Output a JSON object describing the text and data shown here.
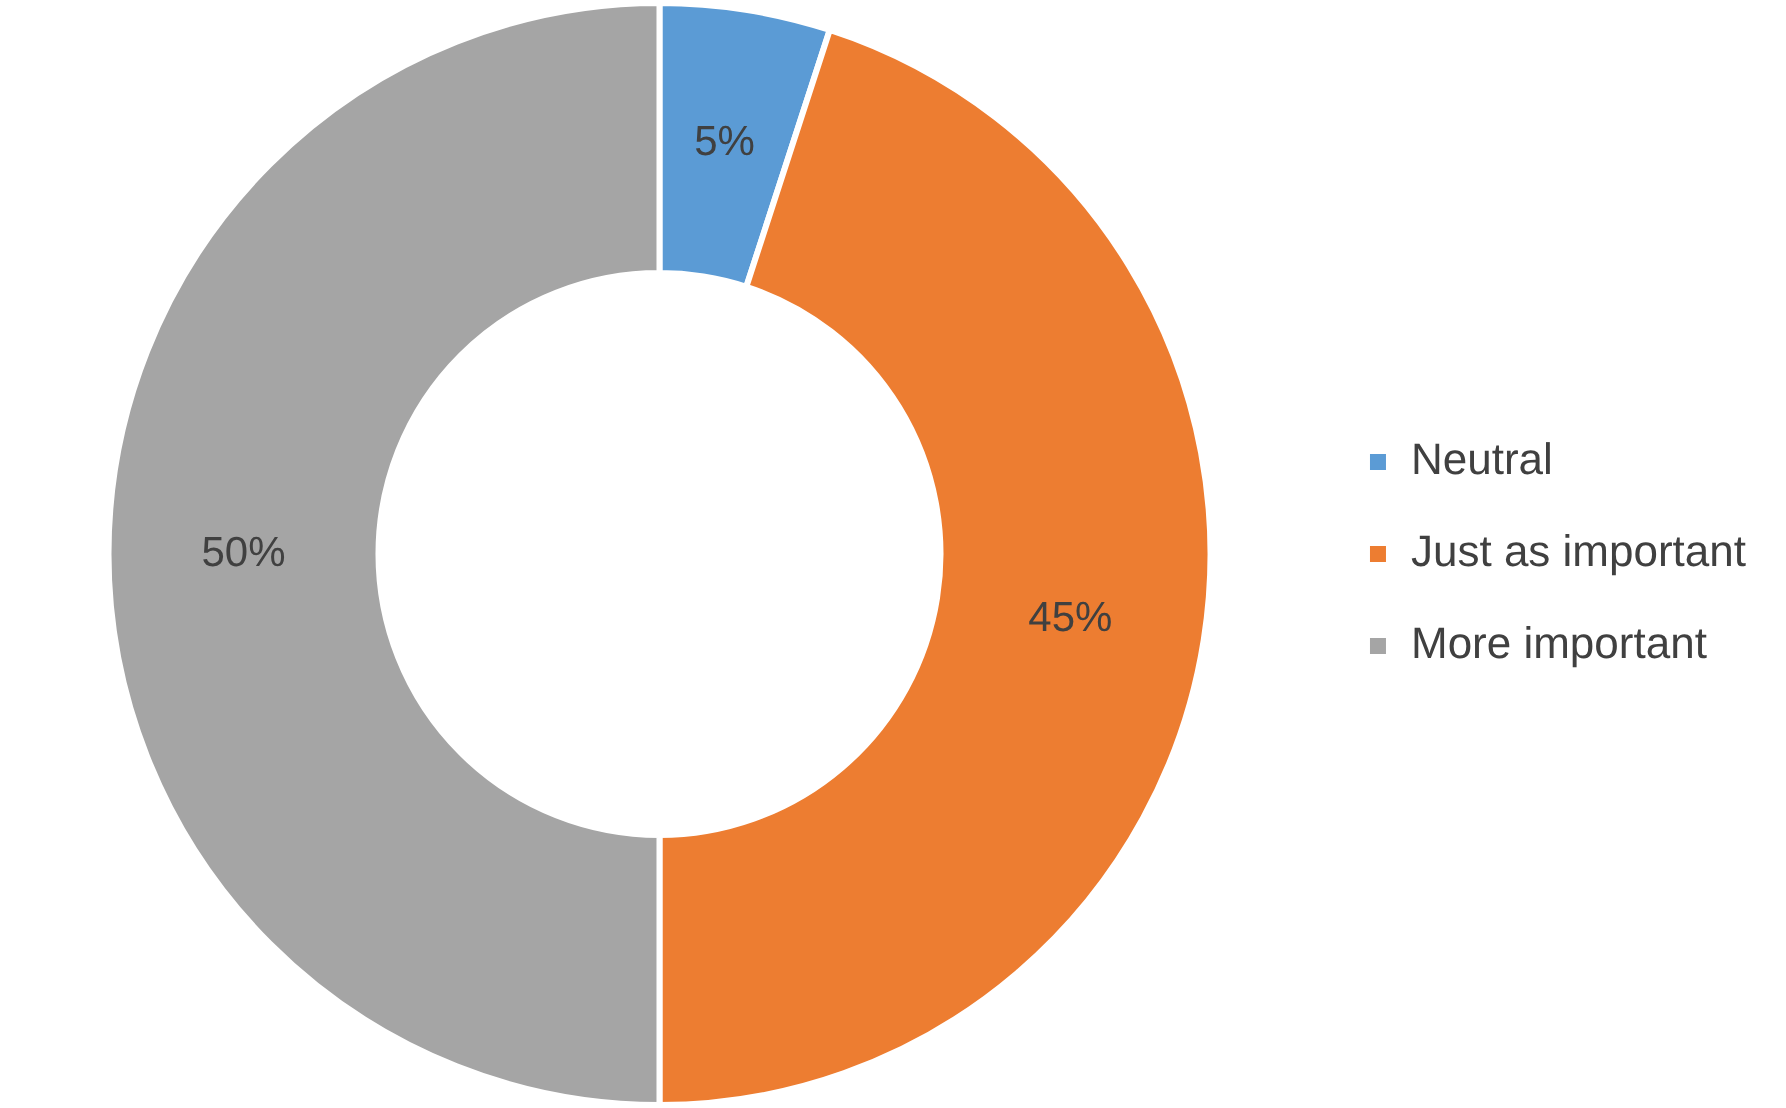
{
  "chart_data": {
    "type": "donut",
    "categories": [
      "Neutral",
      "Just as important",
      "More important"
    ],
    "values": [
      5,
      45,
      50
    ],
    "colors": [
      "#5b9bd5",
      "#ed7d31",
      "#a5a5a5"
    ],
    "value_labels": [
      "5%",
      "45%",
      "50%"
    ],
    "legend": "right"
  }
}
